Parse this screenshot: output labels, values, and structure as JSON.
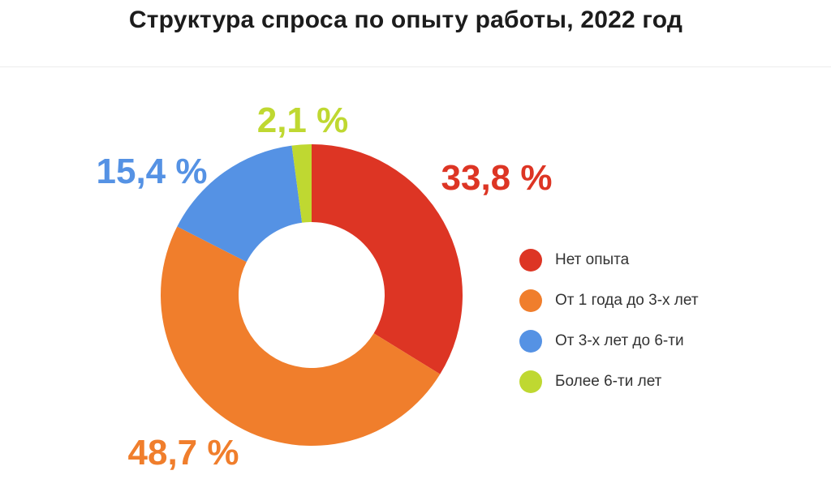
{
  "title": "Структура спроса по опыту работы, 2022 год",
  "chart_data": {
    "type": "pie",
    "style": "donut",
    "title": "Структура спроса по опыту работы, 2022 год",
    "categories": [
      "Нет опыта",
      "От 1 года до 3-х лет",
      "От 3-х лет до 6-ти",
      "Более 6-ти лет"
    ],
    "values": [
      33.8,
      48.7,
      15.4,
      2.1
    ],
    "value_labels": [
      "33,8 %",
      "48,7 %",
      "15,4 %",
      "2,1 %"
    ],
    "colors": [
      "#dd3524",
      "#f07e2c",
      "#5592e4",
      "#bfd831"
    ],
    "legend_position": "right"
  },
  "legend": [
    {
      "label": "Нет опыта",
      "color": "#dd3524"
    },
    {
      "label": "От 1 года до 3-х лет",
      "color": "#f07e2c"
    },
    {
      "label": "От 3-х лет до 6-ти",
      "color": "#5592e4"
    },
    {
      "label": "Более 6-ти лет",
      "color": "#bfd831"
    }
  ]
}
